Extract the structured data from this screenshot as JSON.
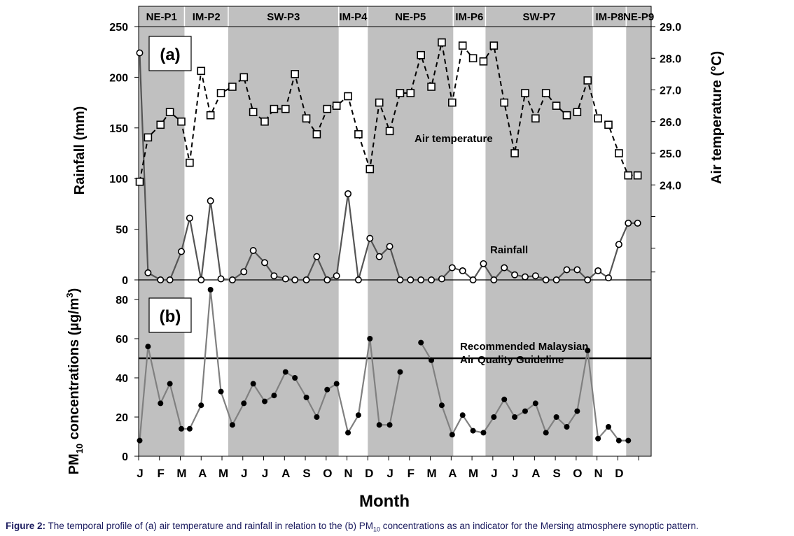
{
  "chart_data": [
    {
      "type": "line",
      "panel_label": "(a)",
      "title": "",
      "xlabel": "",
      "ylabel": "Rainfall (mm)",
      "ylabel_right": "Air temperature (°C)",
      "ylim": [
        0,
        250
      ],
      "ylim_right": [
        21.0,
        29.0
      ],
      "yticks": [
        "0",
        "50",
        "100",
        "150",
        "200",
        "250"
      ],
      "yticks_right": [
        "24.0",
        "25.0",
        "26.0",
        "27.0",
        "28.0",
        "29.0"
      ],
      "periods": [
        {
          "label": "NE-P1",
          "start": 0,
          "end": 2.2,
          "shaded": true
        },
        {
          "label": "IM-P2",
          "start": 2.2,
          "end": 4.3,
          "shaded": false
        },
        {
          "label": "SW-P3",
          "start": 4.3,
          "end": 9.6,
          "shaded": true
        },
        {
          "label": "IM-P4",
          "start": 9.6,
          "end": 11.0,
          "shaded": false
        },
        {
          "label": "NE-P5",
          "start": 11.0,
          "end": 15.1,
          "shaded": true
        },
        {
          "label": "IM-P6",
          "start": 15.1,
          "end": 16.65,
          "shaded": false
        },
        {
          "label": "SW-P7",
          "start": 16.65,
          "end": 21.8,
          "shaded": true
        },
        {
          "label": "IM-P8",
          "start": 21.8,
          "end": 23.4,
          "shaded": false
        },
        {
          "label": "NE-P9",
          "start": 23.4,
          "end": 24.6,
          "shaded": true
        }
      ],
      "series": [
        {
          "name": "Air temperature",
          "style": "dashed",
          "marker": "square",
          "x": [
            0.05,
            0.45,
            1.05,
            1.5,
            2.05,
            2.45,
            3.0,
            3.45,
            3.95,
            4.5,
            5.05,
            5.5,
            6.05,
            6.5,
            7.05,
            7.5,
            8.05,
            8.55,
            9.05,
            9.5,
            10.05,
            10.55,
            11.1,
            11.55,
            12.05,
            12.55,
            13.05,
            13.55,
            14.05,
            14.55,
            15.05,
            15.55,
            16.05,
            16.55,
            17.05,
            17.55,
            18.05,
            18.55,
            19.05,
            19.55,
            20.05,
            20.55,
            21.05,
            21.55,
            22.05,
            22.55,
            23.05,
            23.5,
            23.95
          ],
          "values": [
            24.1,
            25.5,
            25.9,
            26.3,
            26.0,
            24.7,
            27.6,
            26.2,
            26.9,
            27.1,
            27.4,
            26.3,
            26.0,
            26.4,
            26.4,
            27.5,
            26.1,
            25.6,
            26.4,
            26.5,
            26.8,
            25.6,
            24.5,
            26.6,
            25.7,
            26.9,
            26.9,
            28.1,
            27.1,
            28.5,
            26.6,
            28.4,
            28.0,
            27.9,
            28.4,
            26.6,
            25.0,
            26.9,
            26.1,
            26.9,
            26.5,
            26.2,
            26.3,
            27.3,
            26.1,
            25.9,
            25.0,
            24.3,
            24.3
          ],
          "label": "Air temperature"
        },
        {
          "name": "Rainfall",
          "style": "solid",
          "marker": "circle",
          "x": [
            0.05,
            0.45,
            1.05,
            1.5,
            2.05,
            2.45,
            3.0,
            3.45,
            3.95,
            4.5,
            5.05,
            5.5,
            6.05,
            6.5,
            7.05,
            7.5,
            8.05,
            8.55,
            9.05,
            9.5,
            10.05,
            10.55,
            11.1,
            11.55,
            12.05,
            12.55,
            13.05,
            13.55,
            14.05,
            14.55,
            15.05,
            15.55,
            16.05,
            16.55,
            17.05,
            17.55,
            18.05,
            18.55,
            19.05,
            19.55,
            20.05,
            20.55,
            21.05,
            21.55,
            22.05,
            22.55,
            23.05,
            23.5,
            23.95
          ],
          "values": [
            224,
            7,
            0,
            0,
            28,
            61,
            0,
            78,
            1,
            0,
            8,
            29,
            17,
            4,
            1,
            0,
            0,
            23,
            0,
            4,
            85,
            0,
            41,
            23,
            33,
            0,
            0,
            0,
            0,
            1,
            12,
            9,
            0,
            16,
            0,
            12,
            5,
            3,
            4,
            0,
            0,
            10,
            10,
            0,
            9,
            2,
            35,
            56,
            56
          ],
          "label": "Rainfall"
        }
      ]
    },
    {
      "type": "line",
      "panel_label": "(b)",
      "title": "",
      "xlabel": "Month",
      "ylabel": "PM10 concentrations (µg/m3)",
      "ylim": [
        0,
        90
      ],
      "yticks": [
        "0",
        "20",
        "40",
        "60",
        "80"
      ],
      "categories": [
        "J",
        "F",
        "M",
        "A",
        "M",
        "J",
        "J",
        "A",
        "S",
        "O",
        "N",
        "D",
        "J",
        "F",
        "M",
        "A",
        "M",
        "J",
        "J",
        "A",
        "S",
        "O",
        "N",
        "D"
      ],
      "guideline": {
        "value": 50,
        "label_line1": "Recommended Malaysian",
        "label_line2": "Air Quality Guideline"
      },
      "series": [
        {
          "name": "PM10",
          "marker": "dot",
          "segments": [
            {
              "x": [
                0.05,
                0.45,
                1.05,
                1.5,
                2.05,
                2.45,
                3.0,
                3.45,
                3.95,
                4.5,
                5.05,
                5.5,
                6.05,
                6.5,
                7.05,
                7.5,
                8.05,
                8.55,
                9.05,
                9.5,
                10.05,
                10.55,
                11.1,
                11.55,
                12.05,
                12.55
              ],
              "values": [
                8,
                56,
                27,
                37,
                14,
                14,
                26,
                85,
                33,
                16,
                27,
                37,
                28,
                31,
                43,
                40,
                30,
                20,
                34,
                37,
                12,
                21,
                60,
                16,
                16,
                43
              ]
            },
            {
              "x": [
                13.55,
                14.05,
                14.55,
                15.05,
                15.55,
                16.05,
                16.55,
                17.05,
                17.55,
                18.05,
                18.55,
                19.05,
                19.55,
                20.05,
                20.55,
                21.05,
                21.55,
                22.05,
                22.55,
                23.05,
                23.5
              ],
              "values": [
                58,
                49,
                26,
                11,
                21,
                13,
                12,
                20,
                29,
                20,
                23,
                27,
                12,
                20,
                15,
                23,
                54,
                9,
                15,
                8,
                8
              ]
            }
          ]
        }
      ]
    }
  ],
  "caption": {
    "prefix": "Figure 2:",
    "text_a": " The temporal profile of (a) air temperature and rainfall in relation to the (b) PM",
    "sub": "10",
    "text_b": " concentrations as an indicator for the Mersing atmosphere synoptic pattern."
  },
  "colors": {
    "shade": "#c0c0c0",
    "rain_line": "#555555",
    "pm_line": "#808080",
    "marker": "#000000",
    "caption_text": "#1a1a5e"
  }
}
